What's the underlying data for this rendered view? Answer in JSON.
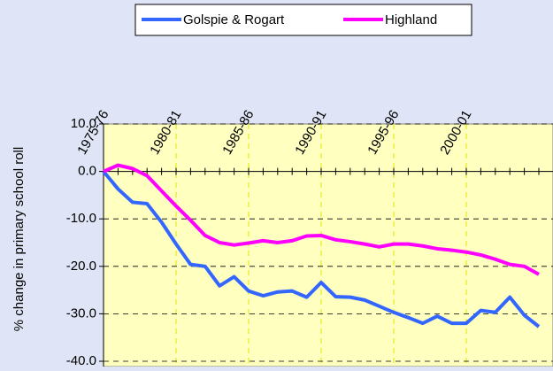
{
  "chart_data": {
    "type": "line",
    "y_label": "% change in primary school roll",
    "categories": [
      "1975-76",
      null,
      null,
      null,
      null,
      "1980-81",
      null,
      null,
      null,
      null,
      "1985-86",
      null,
      null,
      null,
      null,
      "1990-91",
      null,
      null,
      null,
      null,
      "1995-96",
      null,
      null,
      null,
      null,
      "2000-01",
      null,
      null,
      null,
      null,
      null
    ],
    "series": [
      {
        "name": "Golspie & Rogart",
        "color": "#3366ff",
        "values": [
          0,
          -3.7,
          -6.5,
          -6.8,
          -10.7,
          -15.3,
          -19.6,
          -20.0,
          -24.1,
          -22.2,
          -25.2,
          -26.2,
          -25.4,
          -25.2,
          -26.5,
          -23.4,
          -26.4,
          -26.5,
          -27.1,
          -28.4,
          -29.7,
          -30.8,
          -32.0,
          -30.5,
          -32.0,
          -32.0,
          -29.3,
          -29.7,
          -26.5,
          -30.3,
          -32.7
        ]
      },
      {
        "name": "Highland",
        "color": "#ff00ff",
        "values": [
          0,
          1.3,
          0.6,
          -0.9,
          -4.1,
          -7.3,
          -10.3,
          -13.5,
          -15.0,
          -15.5,
          -15.1,
          -14.6,
          -15.0,
          -14.6,
          -13.6,
          -13.5,
          -14.4,
          -14.8,
          -15.3,
          -15.9,
          -15.3,
          -15.3,
          -15.7,
          -16.3,
          -16.6,
          -17.0,
          -17.6,
          -18.5,
          -19.6,
          -20.0,
          -21.7
        ]
      }
    ],
    "ylim": [
      -40,
      10
    ],
    "yticks": [
      {
        "value": 10,
        "label": "10.0"
      },
      {
        "value": 0,
        "label": "0.0"
      },
      {
        "value": -10,
        "label": "-10.0"
      },
      {
        "value": -20,
        "label": "-20.0"
      },
      {
        "value": -30,
        "label": "-30.0"
      },
      {
        "value": -40,
        "label": "-40.0"
      }
    ],
    "grid": true,
    "legend": "top"
  }
}
